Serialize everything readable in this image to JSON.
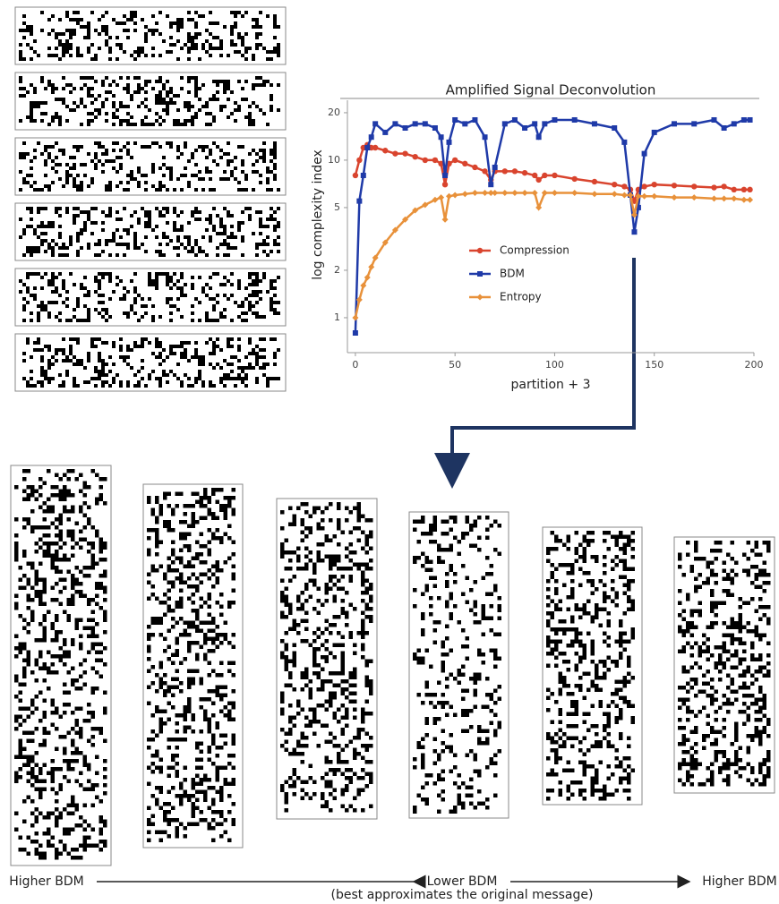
{
  "chart_data": {
    "type": "line",
    "title": "Amplified Signal Deconvolution",
    "x_label": "partition + 3",
    "y_label": "log complexity index",
    "log_y": true,
    "xlim": [
      -4,
      200
    ],
    "ylim": [
      0.6,
      24
    ],
    "xticks": [
      0,
      50,
      100,
      150,
      200
    ],
    "yticks": [
      1,
      2,
      5,
      10,
      20
    ],
    "x": [
      0,
      2,
      4,
      6,
      8,
      10,
      15,
      20,
      25,
      30,
      35,
      40,
      43,
      45,
      47,
      50,
      55,
      60,
      65,
      68,
      70,
      75,
      80,
      85,
      90,
      92,
      95,
      100,
      110,
      120,
      130,
      135,
      138,
      140,
      142,
      145,
      150,
      160,
      170,
      180,
      185,
      190,
      195,
      198
    ],
    "series": [
      {
        "name": "Compression",
        "color": "#d9442e",
        "marker": "circle",
        "values": [
          8,
          10,
          12,
          12.5,
          12,
          12,
          11.5,
          11,
          11,
          10.5,
          10,
          10,
          9.5,
          7,
          9.5,
          10,
          9.5,
          9,
          8.5,
          7.5,
          8.5,
          8.5,
          8.5,
          8.3,
          8,
          7.5,
          8,
          8,
          7.6,
          7.3,
          7,
          6.8,
          6.5,
          5.5,
          6.5,
          6.8,
          7,
          6.9,
          6.8,
          6.7,
          6.8,
          6.5,
          6.5,
          6.5
        ]
      },
      {
        "name": "BDM",
        "color": "#1f3aa8",
        "marker": "square",
        "values": [
          0.8,
          5.5,
          8,
          12,
          14,
          17,
          15,
          17,
          16,
          17,
          17,
          16,
          14,
          8,
          13,
          18,
          17,
          18,
          14,
          7,
          9,
          17,
          18,
          16,
          17,
          14,
          17,
          18,
          18,
          17,
          16,
          13,
          6,
          3.5,
          5,
          11,
          15,
          17,
          17,
          18,
          16,
          17,
          18,
          18
        ]
      },
      {
        "name": "Entropy",
        "color": "#e8913a",
        "marker": "diamond",
        "values": [
          1,
          1.3,
          1.6,
          1.8,
          2.1,
          2.4,
          3,
          3.6,
          4.2,
          4.8,
          5.2,
          5.6,
          5.8,
          4.2,
          5.9,
          6,
          6.1,
          6.2,
          6.2,
          6.2,
          6.2,
          6.2,
          6.2,
          6.2,
          6.2,
          5,
          6.2,
          6.2,
          6.2,
          6.1,
          6.1,
          6,
          6,
          4.5,
          5.9,
          5.9,
          5.9,
          5.8,
          5.8,
          5.7,
          5.7,
          5.7,
          5.6,
          5.6
        ]
      }
    ],
    "annotations": [
      "Higher BDM",
      "Lower BDM",
      "(best approximates the original message)",
      "Higher BDM"
    ]
  }
}
